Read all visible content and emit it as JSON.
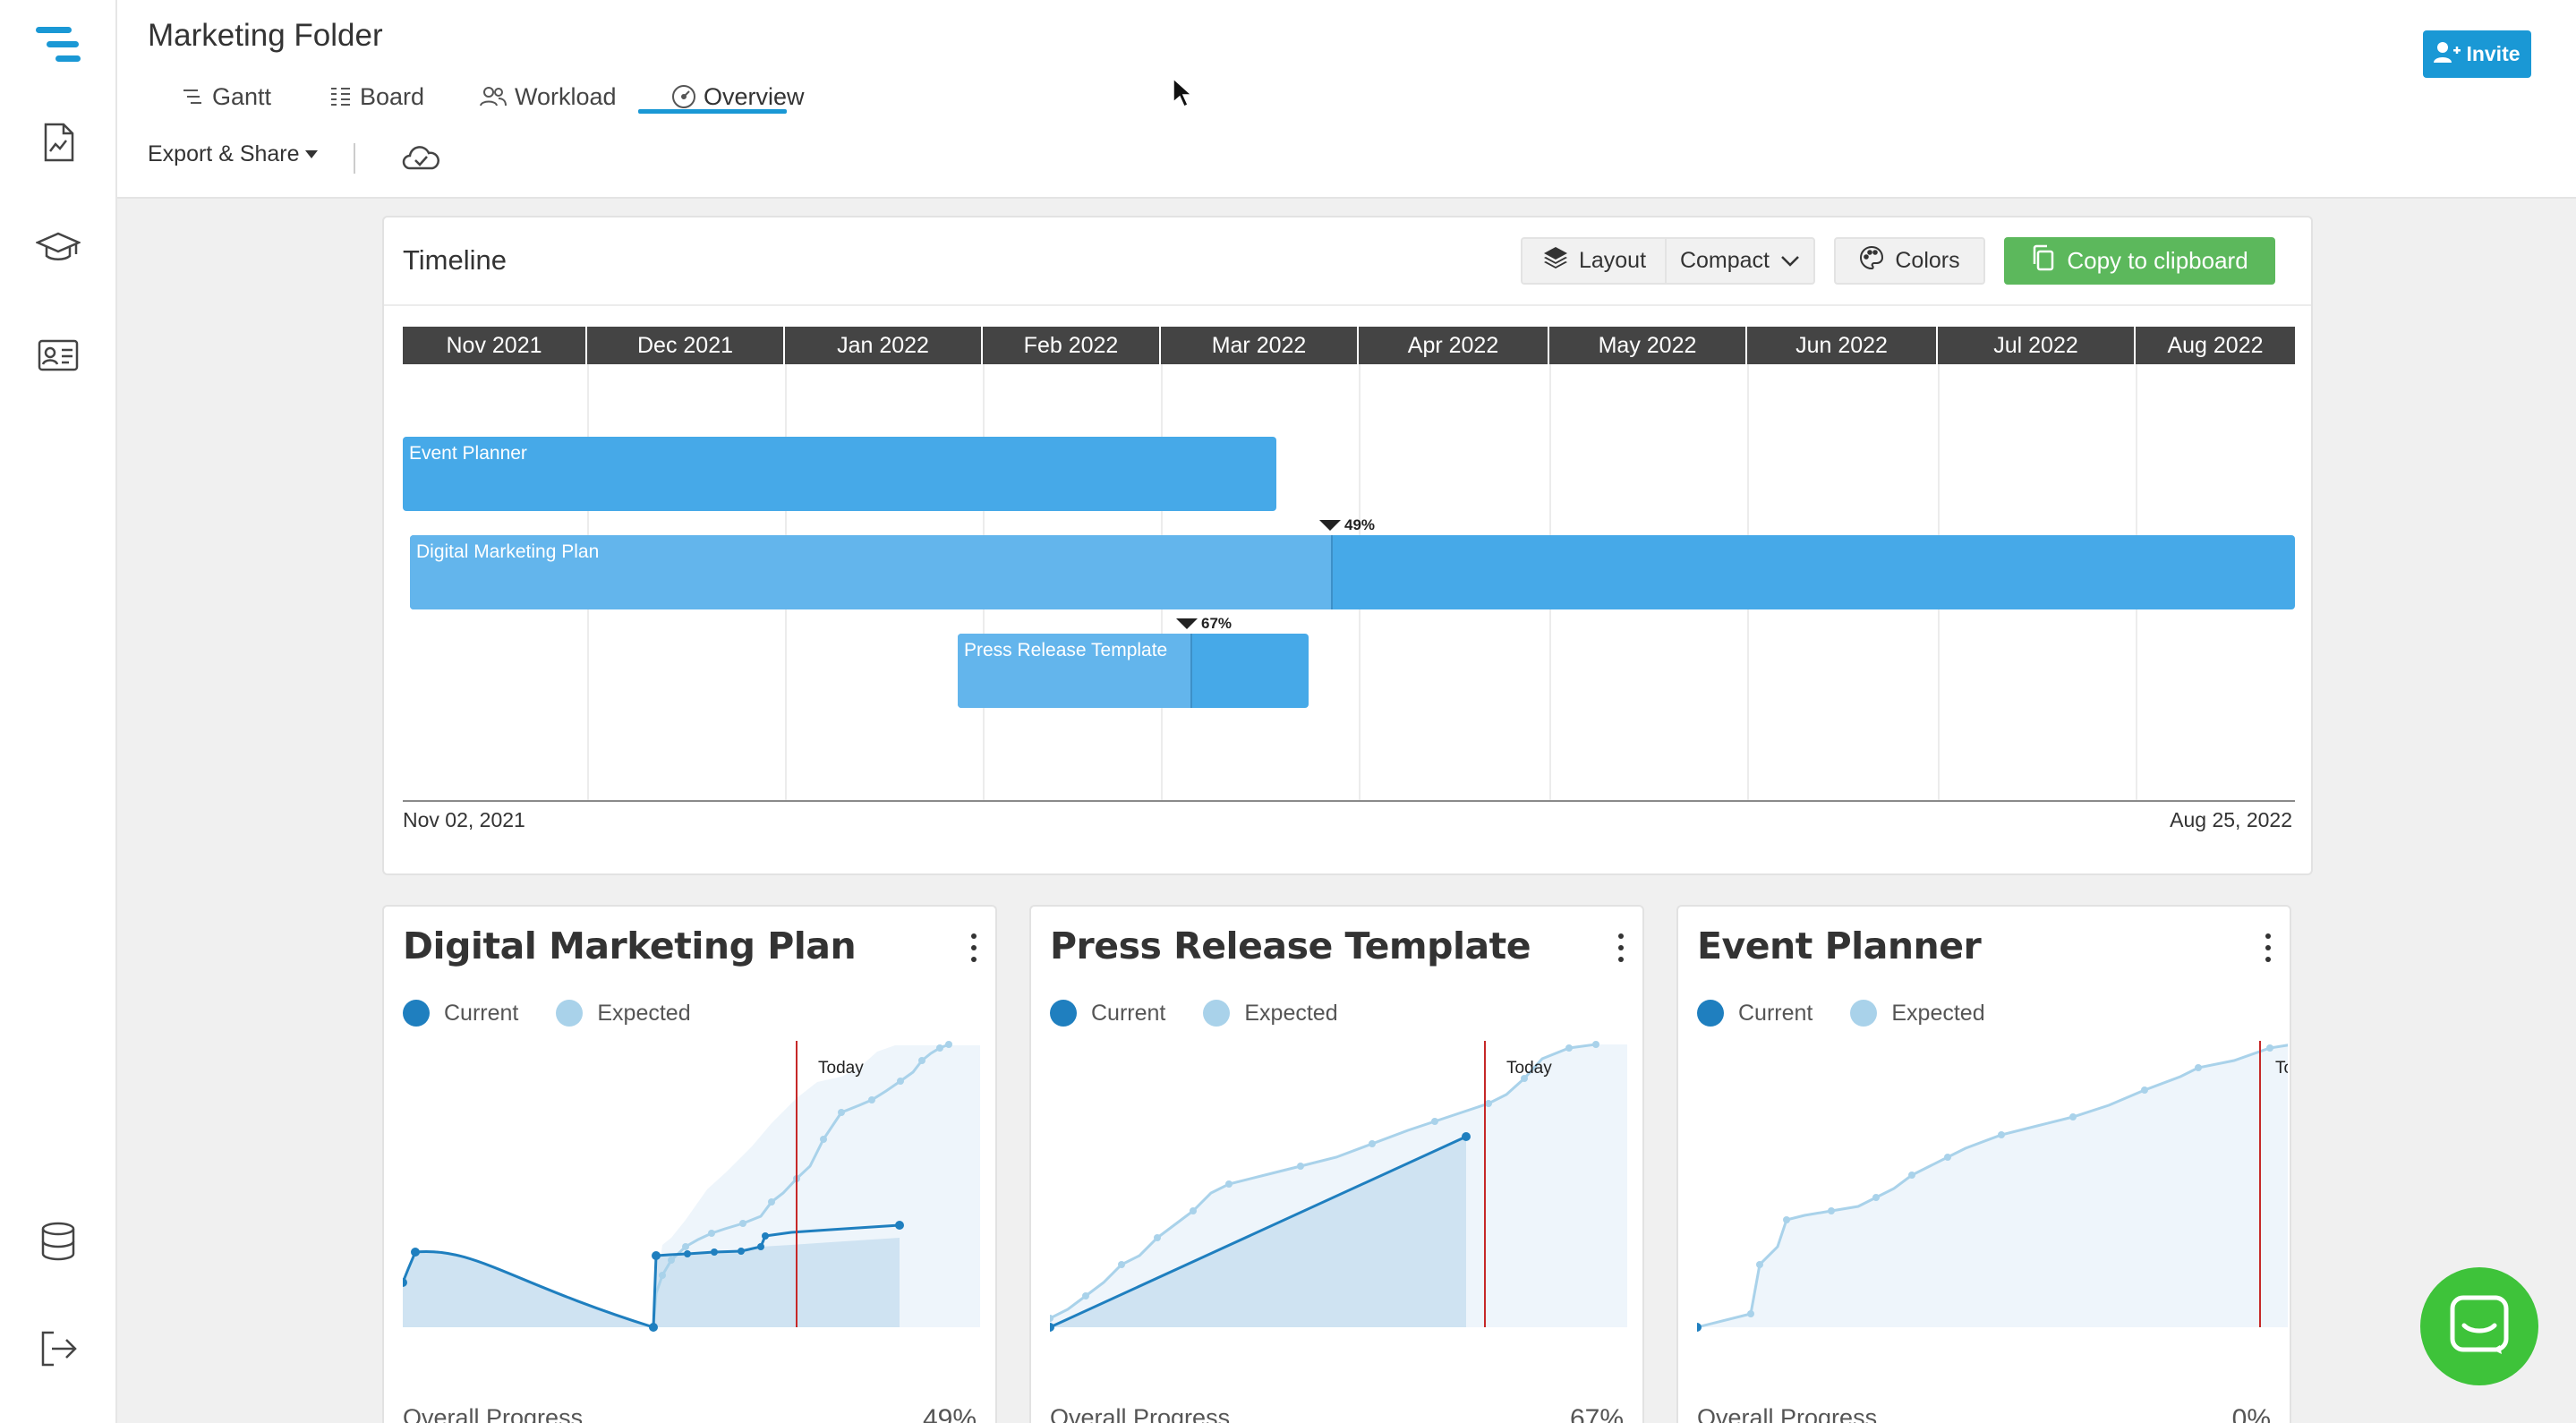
{
  "header": {
    "title": "Marketing Folder",
    "tabs": [
      {
        "label": "Gantt"
      },
      {
        "label": "Board"
      },
      {
        "label": "Workload"
      },
      {
        "label": "Overview"
      }
    ],
    "active_tab": "Overview",
    "export_label": "Export & Share",
    "invite_label": "Invite"
  },
  "sidebar": {
    "items": [
      "logo-icon",
      "report-icon",
      "academy-icon",
      "contact-card-icon",
      "database-icon",
      "logout-icon"
    ]
  },
  "timeline": {
    "title": "Timeline",
    "layout_label": "Layout",
    "compact_label": "Compact",
    "colors_label": "Colors",
    "copy_label": "Copy to clipboard",
    "months": [
      "Nov 2021",
      "Dec 2021",
      "Jan 2022",
      "Feb 2022",
      "Mar 2022",
      "Apr 2022",
      "May 2022",
      "Jun 2022",
      "Jul 2022",
      "Aug 2022"
    ],
    "bars": [
      {
        "name": "Event Planner",
        "progress": 0
      },
      {
        "name": "Digital Marketing Plan",
        "progress": 49,
        "progress_label": "49%"
      },
      {
        "name": "Press Release Template",
        "progress": 67,
        "progress_label": "67%"
      }
    ],
    "start_date": "Nov 02, 2021",
    "end_date": "Aug 25, 2022"
  },
  "cards": [
    {
      "title": "Digital Marketing Plan",
      "current_label": "Current",
      "expected_label": "Expected",
      "today_label": "Today",
      "overall_label": "Overall Progress",
      "overall_value": "49%"
    },
    {
      "title": "Press Release Template",
      "current_label": "Current",
      "expected_label": "Expected",
      "today_label": "Today",
      "overall_label": "Overall Progress",
      "overall_value": "67%"
    },
    {
      "title": "Event Planner",
      "current_label": "Current",
      "expected_label": "Expected",
      "today_label": "Tod",
      "overall_label": "Overall Progress",
      "overall_value": "0%"
    }
  ],
  "colors": {
    "accent": "#1a98d5",
    "bar": "#46a9e8",
    "bar_done": "#63b5ec",
    "copy_button": "#5cb85c",
    "current": "#1f7fbf",
    "expected": "#a9d2ea",
    "today_line": "#c62828",
    "chat": "#3ec33a"
  }
}
